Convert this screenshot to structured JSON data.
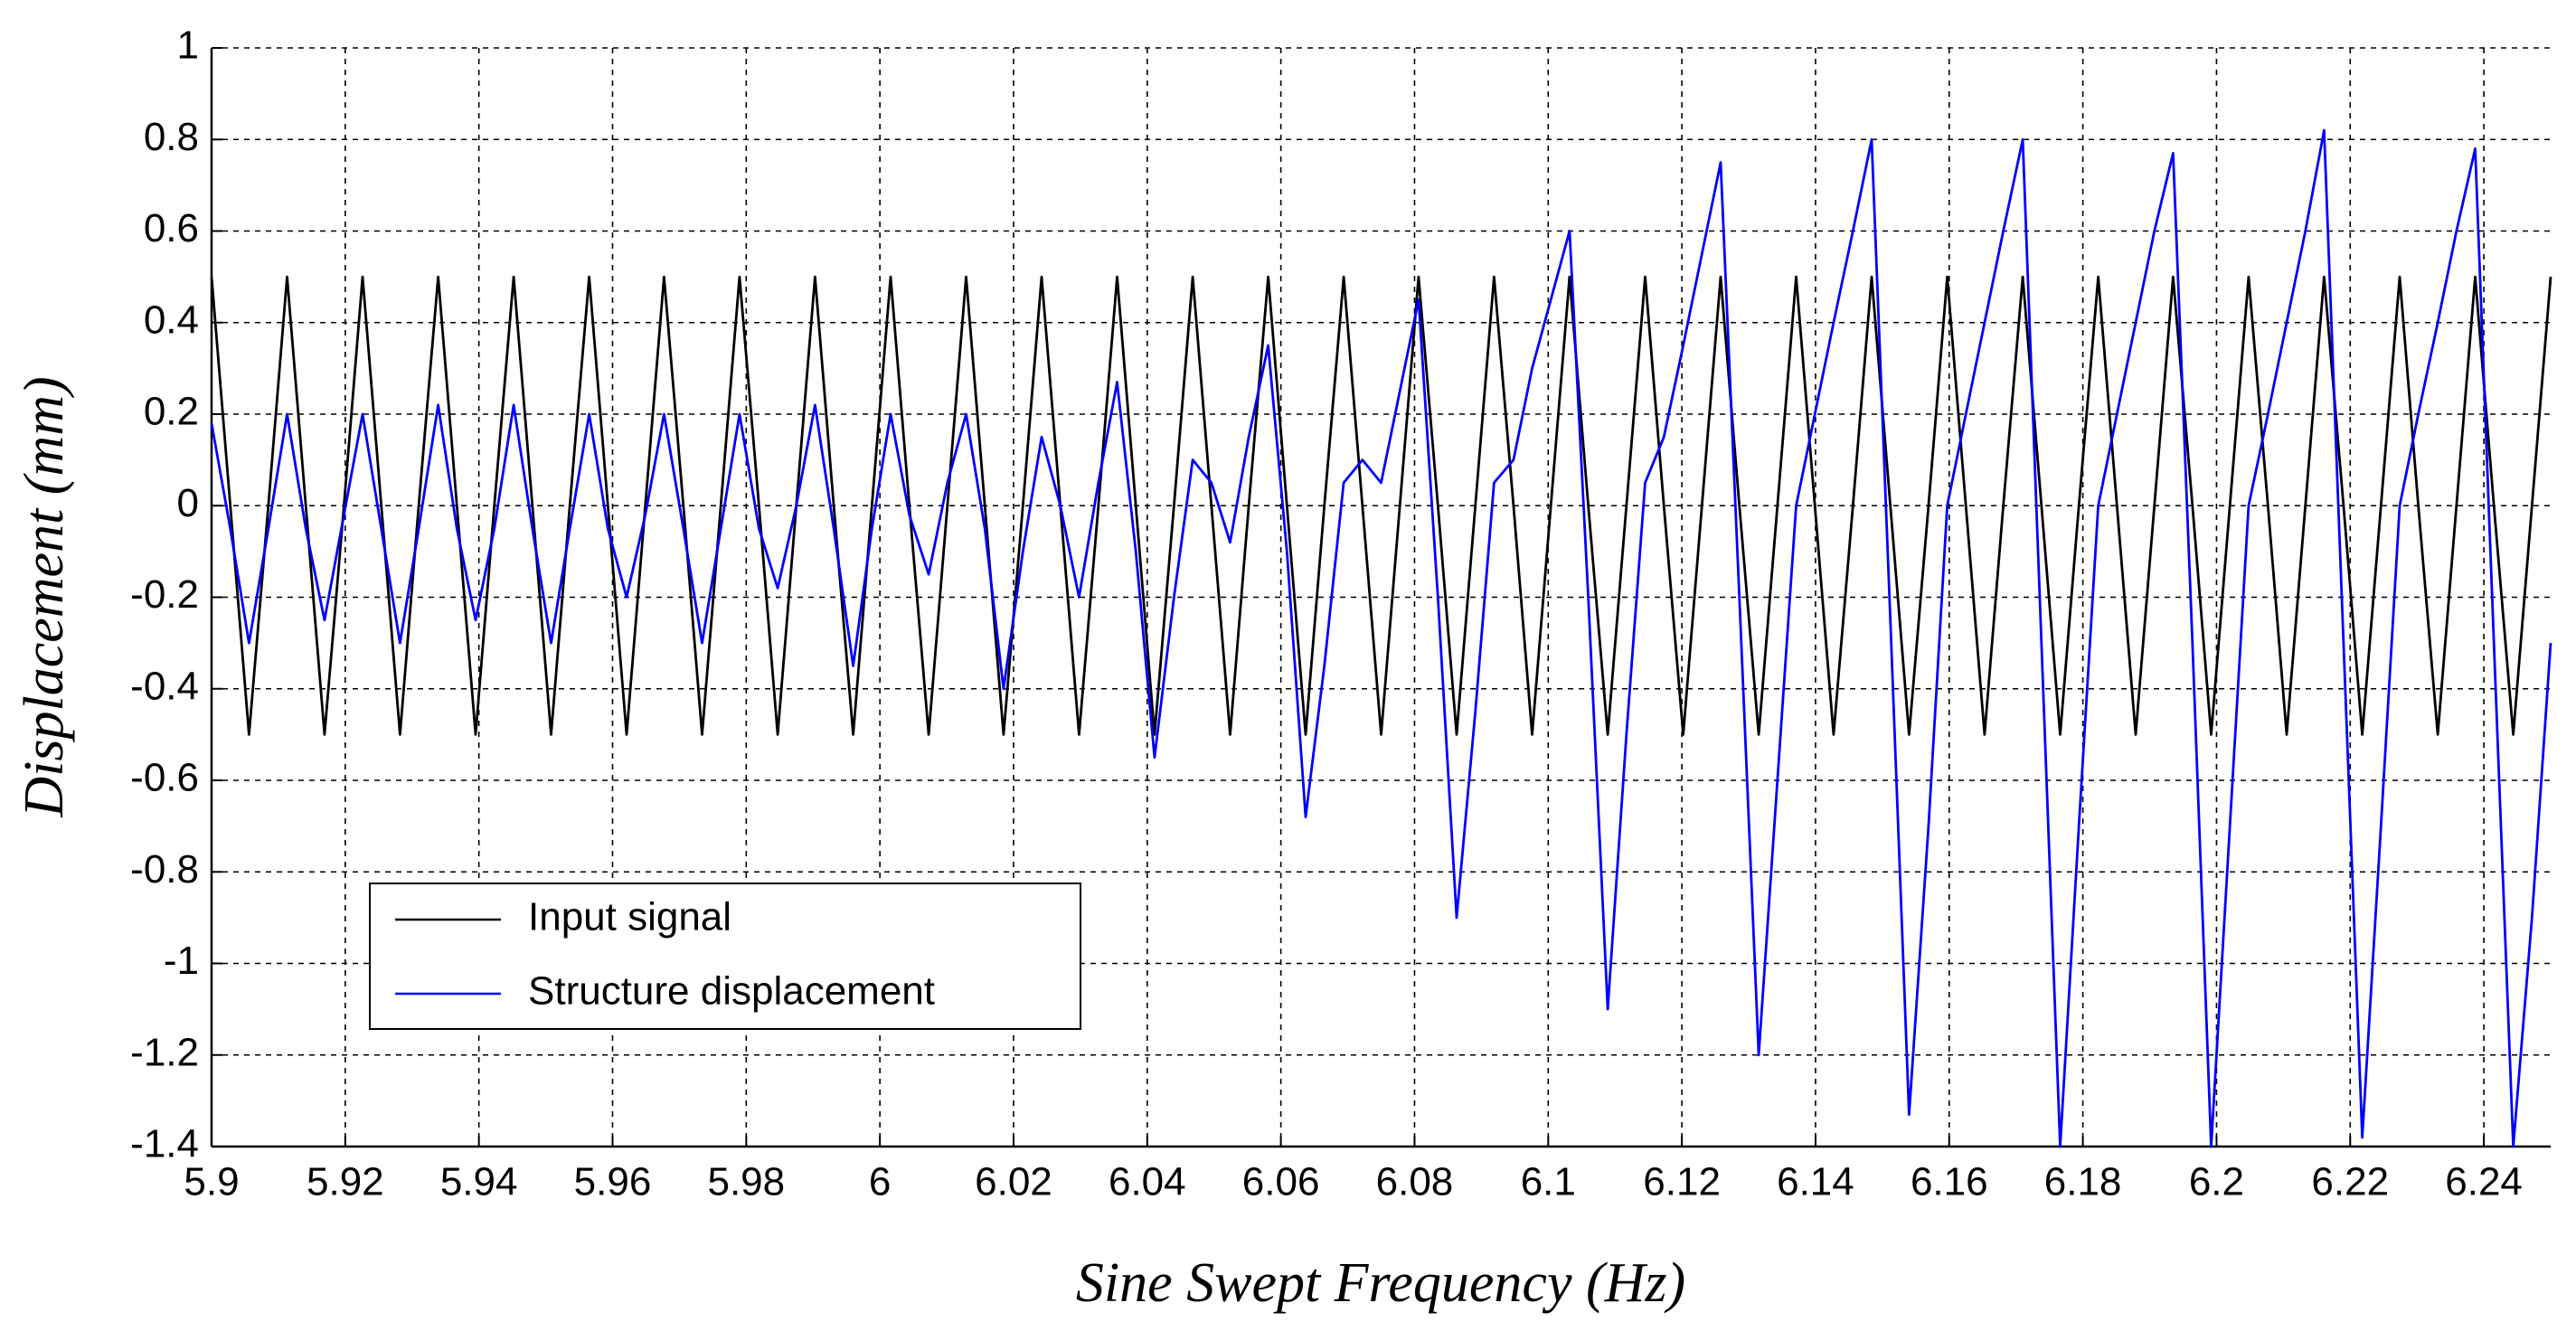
{
  "chart_data": {
    "type": "line",
    "x_label": "Sine Swept Frequency (Hz)",
    "y_label": "Displacement (mm)",
    "x": [
      5.9,
      5.9028,
      5.9056,
      5.9085,
      5.9113,
      5.9141,
      5.9169,
      5.9198,
      5.9226,
      5.9254,
      5.9282,
      5.931,
      5.9339,
      5.9367,
      5.9395,
      5.9423,
      5.9452,
      5.948,
      5.9508,
      5.9536,
      5.9565,
      5.9593,
      5.9621,
      5.9649,
      5.9677,
      5.9706,
      5.9734,
      5.9762,
      5.979,
      5.9819,
      5.9847,
      5.9875,
      5.9903,
      5.9931,
      5.996,
      5.9988,
      6.0016,
      6.0044,
      6.0073,
      6.0101,
      6.0129,
      6.0157,
      6.0185,
      6.0214,
      6.0242,
      6.027,
      6.0298,
      6.0327,
      6.0355,
      6.0383,
      6.0411,
      6.044,
      6.0468,
      6.0496,
      6.0524,
      6.0552,
      6.0581,
      6.0609,
      6.0637,
      6.0665,
      6.0694,
      6.0722,
      6.075,
      6.0778,
      6.0806,
      6.0835,
      6.0863,
      6.0891,
      6.0919,
      6.0948,
      6.0976,
      6.1004,
      6.1032,
      6.106,
      6.1089,
      6.1117,
      6.1145,
      6.1173,
      6.1202,
      6.123,
      6.1258,
      6.1286,
      6.1315,
      6.1343,
      6.1371,
      6.1399,
      6.1427,
      6.1456,
      6.1484,
      6.1512,
      6.154,
      6.1569,
      6.1597,
      6.1625,
      6.1653,
      6.1681,
      6.171,
      6.1738,
      6.1766,
      6.1794,
      6.1823,
      6.1851,
      6.1879,
      6.1907,
      6.1935,
      6.1964,
      6.1992,
      6.202,
      6.2048,
      6.2077,
      6.2105,
      6.2133,
      6.2161,
      6.219,
      6.2218,
      6.2246,
      6.2274,
      6.2302,
      6.2331,
      6.2359,
      6.2387,
      6.2415,
      6.2444,
      6.2472,
      6.25
    ],
    "series": [
      {
        "name": "Input signal",
        "color": "#000000",
        "values": [
          0.5,
          0,
          -0.5,
          0,
          0.5,
          0,
          -0.5,
          0,
          0.5,
          0,
          -0.5,
          0,
          0.5,
          0,
          -0.5,
          0,
          0.5,
          0,
          -0.5,
          0,
          0.5,
          0,
          -0.5,
          0,
          0.5,
          0,
          -0.5,
          0,
          0.5,
          0,
          -0.5,
          0,
          0.5,
          0,
          -0.5,
          0,
          0.5,
          0,
          -0.5,
          0,
          0.5,
          0,
          -0.5,
          0,
          0.5,
          0,
          -0.5,
          0,
          0.5,
          0,
          -0.5,
          0,
          0.5,
          0,
          -0.5,
          0,
          0.5,
          0,
          -0.5,
          0,
          0.5,
          0,
          -0.5,
          0,
          0.5,
          0,
          -0.5,
          0,
          0.5,
          0,
          -0.5,
          0,
          0.5,
          0,
          -0.5,
          0,
          0.5,
          0,
          -0.5,
          0,
          0.5,
          0,
          -0.5,
          0,
          0.5,
          0,
          -0.5,
          0,
          0.5,
          0,
          -0.5,
          0,
          0.5,
          0,
          -0.5,
          0,
          0.5,
          0,
          -0.5,
          0,
          0.5,
          0,
          -0.5,
          0,
          0.5,
          0,
          -0.5,
          0,
          0.5,
          0,
          -0.5,
          0,
          0.5,
          0,
          -0.5,
          0,
          0.5,
          0,
          -0.5,
          0,
          0.5,
          0,
          -0.5,
          0,
          0.5
        ]
      },
      {
        "name": "Structure displacement",
        "color": "#0000ff",
        "values": [
          0.18,
          -0.05,
          -0.3,
          -0.05,
          0.2,
          -0.05,
          -0.25,
          -0.02,
          0.2,
          -0.05,
          -0.3,
          -0.05,
          0.22,
          -0.05,
          -0.25,
          -0.05,
          0.22,
          -0.05,
          -0.3,
          -0.05,
          0.2,
          -0.05,
          -0.2,
          -0.02,
          0.2,
          -0.05,
          -0.3,
          -0.05,
          0.2,
          -0.05,
          -0.18,
          0,
          0.22,
          -0.05,
          -0.35,
          -0.05,
          0.2,
          -0.02,
          -0.15,
          0.05,
          0.2,
          -0.05,
          -0.4,
          -0.1,
          0.15,
          0,
          -0.2,
          0.05,
          0.27,
          -0.1,
          -0.55,
          -0.2,
          0.1,
          0.05,
          -0.08,
          0.15,
          0.35,
          -0.1,
          -0.68,
          -0.35,
          0.05,
          0.1,
          0.05,
          0.25,
          0.45,
          -0.2,
          -0.9,
          -0.45,
          0.05,
          0.1,
          0.3,
          0.45,
          0.6,
          -0.2,
          -1.1,
          -0.5,
          0.05,
          0.15,
          0.35,
          0.55,
          0.75,
          -0.2,
          -1.2,
          -0.6,
          0,
          0.2,
          0.4,
          0.6,
          0.8,
          -0.25,
          -1.33,
          -0.7,
          0,
          0.2,
          0.4,
          0.6,
          0.8,
          -0.3,
          -1.4,
          -0.7,
          0,
          0.2,
          0.4,
          0.6,
          0.77,
          -0.3,
          -1.4,
          -0.7,
          0,
          0.2,
          0.4,
          0.6,
          0.82,
          -0.3,
          -1.38,
          -0.7,
          0,
          0.2,
          0.4,
          0.6,
          0.78,
          -0.3,
          -1.4,
          -0.9,
          -0.3
        ]
      }
    ],
    "xlim": [
      5.9,
      6.25
    ],
    "xticks": [
      5.9,
      5.92,
      5.94,
      5.96,
      5.98,
      6,
      6.02,
      6.04,
      6.06,
      6.08,
      6.1,
      6.12,
      6.14,
      6.16,
      6.18,
      6.2,
      6.22,
      6.24
    ],
    "ylim": [
      -1.4,
      1
    ],
    "yticks": [
      -1.4,
      -1.2,
      -1,
      -0.8,
      -0.6,
      -0.4,
      -0.2,
      0,
      0.2,
      0.4,
      0.6,
      0.8,
      1
    ],
    "grid": true,
    "legend": "lower left"
  }
}
